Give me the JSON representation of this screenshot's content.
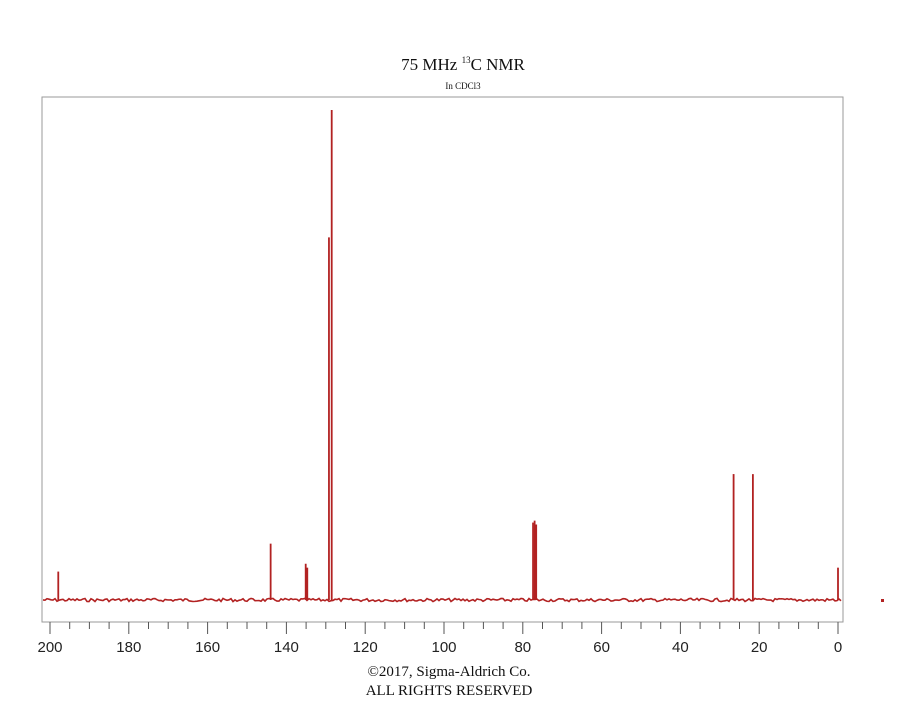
{
  "chart_data": {
    "type": "line",
    "title_main": "75 MHz",
    "title_nucleus_sup": "13",
    "title_nucleus": "C NMR",
    "subtitle": "In CDCl3",
    "xlabel": "",
    "ylabel": "",
    "xlim": [
      200,
      0
    ],
    "x_reversed": true,
    "ylim": [
      0,
      1.0
    ],
    "grid": false,
    "x_ticks": [
      200,
      180,
      160,
      140,
      120,
      100,
      80,
      60,
      40,
      20,
      0
    ],
    "x_minor_tick_step": 5,
    "series_color": "#b22222",
    "peaks": [
      {
        "ppm": 197.9,
        "height": 0.058
      },
      {
        "ppm": 144.0,
        "height": 0.115
      },
      {
        "ppm": 135.1,
        "height": 0.074
      },
      {
        "ppm": 134.7,
        "height": 0.066
      },
      {
        "ppm": 129.2,
        "height": 0.74
      },
      {
        "ppm": 128.5,
        "height": 1.0
      },
      {
        "ppm": 77.4,
        "height": 0.158
      },
      {
        "ppm": 77.0,
        "height": 0.162
      },
      {
        "ppm": 76.6,
        "height": 0.154
      },
      {
        "ppm": 26.5,
        "height": 0.257
      },
      {
        "ppm": 21.6,
        "height": 0.257
      },
      {
        "ppm": 0.0,
        "height": 0.066
      }
    ]
  },
  "copyright_line1": "©2017, Sigma-Aldrich Co.",
  "copyright_line2": "ALL RIGHTS RESERVED"
}
